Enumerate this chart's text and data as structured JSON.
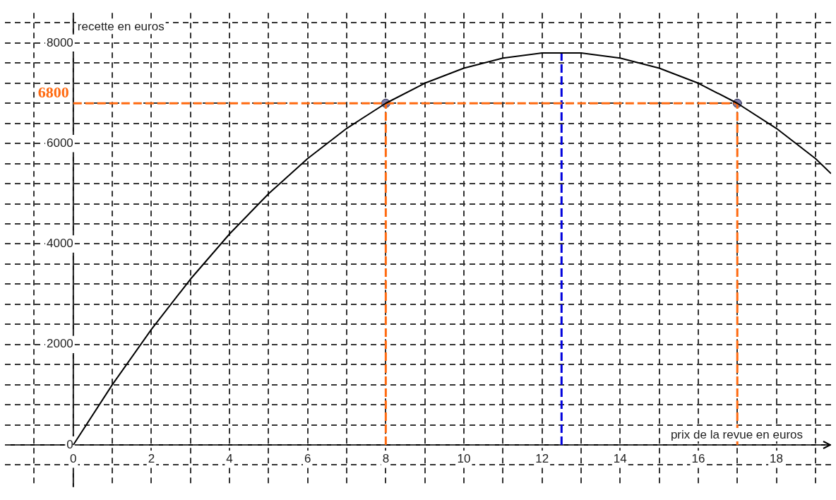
{
  "chart_data": {
    "type": "line",
    "xlabel": "prix de la revue en euros",
    "ylabel": "recette en euros",
    "series": [
      {
        "color": "#000000",
        "marker": "none",
        "line_style": "solid",
        "x": [
          0,
          1,
          2,
          3,
          4,
          5,
          6,
          7,
          8,
          9,
          10,
          11,
          12,
          12.5,
          13,
          14,
          15,
          16,
          17,
          18,
          19,
          19.4
        ],
        "values": [
          0,
          1200,
          2300,
          3300,
          4200,
          5000,
          5700,
          6300,
          6800,
          7200,
          7500,
          7700,
          7800,
          7800,
          7800,
          7700,
          7500,
          7200,
          6800,
          6300,
          5700,
          5400
        ]
      },
      {
        "type": "line",
        "color": "#ff6a10",
        "marker": "none",
        "line_style": "dashed",
        "x": [
          0,
          17
        ],
        "values": [
          6800,
          6800
        ]
      },
      {
        "type": "line",
        "color": "#ff6a10",
        "marker": "none",
        "line_style": "dashed",
        "x": [
          8,
          8
        ],
        "values": [
          0,
          6800
        ]
      },
      {
        "type": "line",
        "color": "#ff6a10",
        "marker": "none",
        "line_style": "dashed",
        "x": [
          17,
          17
        ],
        "values": [
          0,
          6800
        ]
      },
      {
        "type": "line",
        "color": "#0000dd",
        "marker": "none",
        "line_style": "dashed",
        "x": [
          12.5,
          12.5
        ],
        "values": [
          0,
          7800
        ]
      },
      {
        "type": "scatter",
        "color": "#7a7aa8",
        "marker": "circle",
        "x": [
          8,
          17
        ],
        "values": [
          6800,
          6800
        ]
      }
    ],
    "annotations": [
      {
        "text": "6800",
        "x": 0,
        "y": 6800
      }
    ],
    "xlim": [
      -1.75,
      19.4
    ],
    "ylim": [
      -840,
      8600
    ],
    "xticks": [
      {
        "value": -1,
        "label": null
      },
      0,
      {
        "value": 1,
        "label": null
      },
      2,
      {
        "value": 3,
        "label": null
      },
      4,
      {
        "value": 5,
        "label": null
      },
      6,
      {
        "value": 7,
        "label": null
      },
      8,
      {
        "value": 9,
        "label": null
      },
      10,
      {
        "value": 11,
        "label": null
      },
      12,
      {
        "value": 13,
        "label": null
      },
      14,
      {
        "value": 15,
        "label": null
      },
      16,
      {
        "value": 17,
        "label": null
      },
      18,
      {
        "value": 19,
        "label": null
      }
    ],
    "yticks": [
      {
        "value": -400,
        "label": null
      },
      0,
      {
        "value": 400,
        "label": null
      },
      {
        "value": 800,
        "label": null
      },
      {
        "value": 1200,
        "label": null
      },
      {
        "value": 1600,
        "label": null
      },
      2000,
      {
        "value": 2400,
        "label": null
      },
      {
        "value": 2800,
        "label": null
      },
      {
        "value": 3200,
        "label": null
      },
      {
        "value": 3600,
        "label": null
      },
      4000,
      {
        "value": 4400,
        "label": null
      },
      {
        "value": 4800,
        "label": null
      },
      {
        "value": 5200,
        "label": null
      },
      {
        "value": 5600,
        "label": null
      },
      6000,
      {
        "value": 6400,
        "label": null
      },
      {
        "value": 6800,
        "label": null
      },
      {
        "value": 7200,
        "label": null
      },
      {
        "value": 7600,
        "label": null
      },
      8000,
      {
        "value": 8400,
        "label": null
      }
    ],
    "grid": true,
    "legend": false
  }
}
